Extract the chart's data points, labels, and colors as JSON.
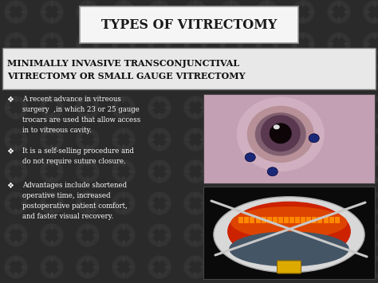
{
  "title": "TYPES OF VITRECTOMY",
  "subtitle_line1": "MINIMALLY INVASIVE TRANSCONJUNCTIVAL",
  "subtitle_line2": "VITRECTOMY OR SMALL GAUGE VITRECTOMY",
  "bullet1_line1": "A recent advance in vitreous",
  "bullet1_line2": "surgery  ,in which 23 or 25 gauge",
  "bullet1_line3": "trocars are used that allow access",
  "bullet1_line4": "in to vitreous cavity.",
  "bullet2_line1": "It is a self-selling procedure and",
  "bullet2_line2": "do not require suture closure.",
  "bullet3_line1": "Advantages include shortened",
  "bullet3_line2": "operative time, increased",
  "bullet3_line3": "postoperative patient comfort,",
  "bullet3_line4": "and faster visual recovery.",
  "bg_color": "#2e2e2e",
  "title_box_color": "#f5f5f5",
  "title_text_color": "#1a1a1a",
  "subtitle_box_color": "#e8e8e8",
  "subtitle_text_color": "#111111",
  "bullet_text_color": "#ffffff",
  "bullet_symbol": "❖",
  "img1_bg": "#c8a0b8",
  "img1_iris": "#7a5878",
  "img1_pupil": "#1a0a10",
  "img1_dot": "#1a2a88",
  "img2_bg": "#111111",
  "img2_outer": "#e8e8e8",
  "img2_circle": "#cc3300",
  "img2_inner": "#aa2200",
  "img2_retina": "#ff6600"
}
